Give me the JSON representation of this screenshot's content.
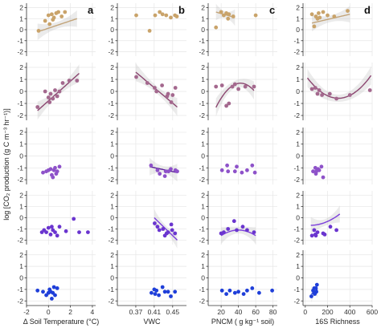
{
  "colors": {
    "row_points": [
      "#c9a36a",
      "#a4688e",
      "#8e52c9",
      "#6a35cf",
      "#1f3fd9"
    ],
    "row_lines": [
      "#c2a47a",
      "#8b4670",
      "#5a1e9a",
      "#7b3ddb",
      "#1f3fd9"
    ]
  },
  "ylabel": "log [CO₂ production (g C m⁻³ hr⁻¹)]",
  "columns": [
    {
      "letter": "a",
      "xlabel": "Δ Soil Temperature (°C)",
      "xlim": [
        -2,
        4.3
      ],
      "xticks": [
        -2,
        0,
        2,
        4
      ],
      "tick_labels": [
        "-2",
        "0",
        "2",
        "4"
      ]
    },
    {
      "letter": "b",
      "xlabel": "VWC",
      "xlim": [
        0.33,
        0.48
      ],
      "xticks": [
        0.37,
        0.41,
        0.45
      ],
      "tick_labels": [
        "0.37",
        "0.41",
        "0.45"
      ]
    },
    {
      "letter": "c",
      "xlabel": "PNCM ( g kg⁻¹ soil)",
      "xlim": [
        5,
        85
      ],
      "xticks": [
        20,
        40,
        60,
        80
      ],
      "tick_labels": [
        "20",
        "40",
        "60",
        "80"
      ]
    },
    {
      "letter": "d",
      "xlabel": "16S Richness",
      "xlim": [
        -20,
        600
      ],
      "xticks": [
        0,
        200,
        400,
        600
      ],
      "tick_labels": [
        "0",
        "200",
        "400",
        "600"
      ]
    }
  ],
  "row_yticks": [
    -2,
    -1,
    0,
    1,
    2
  ],
  "row_tick_labels": [
    "-2",
    "-1",
    "0",
    "1",
    "2"
  ],
  "chart_data": {
    "type": "scatter",
    "layout": "grid 5 rows x 4 columns",
    "ylim": [
      -2.4,
      2.4
    ],
    "grid": true,
    "panels": [
      {
        "row": 0,
        "col": 0,
        "points": [
          [
            -0.9,
            -0.1
          ],
          [
            -0.3,
            0.8
          ],
          [
            0.0,
            1.3
          ],
          [
            0.1,
            0.5
          ],
          [
            0.3,
            1.4
          ],
          [
            0.5,
            1.1
          ],
          [
            0.7,
            1.5
          ],
          [
            0.9,
            1.6
          ],
          [
            1.2,
            1.2
          ],
          [
            1.5,
            1.6
          ],
          [
            0.4,
            0.9
          ]
        ],
        "fit": {
          "kind": "linear",
          "x": [
            -1.0,
            2.6
          ],
          "y": [
            -0.2,
            1.0
          ]
        }
      },
      {
        "row": 0,
        "col": 1,
        "points": [
          [
            0.371,
            1.3
          ],
          [
            0.4,
            -0.1
          ],
          [
            0.412,
            1.3
          ],
          [
            0.422,
            1.6
          ],
          [
            0.428,
            1.4
          ],
          [
            0.436,
            1.3
          ],
          [
            0.446,
            1.1
          ],
          [
            0.455,
            1.3
          ],
          [
            0.459,
            1.2
          ]
        ]
      },
      {
        "row": 0,
        "col": 2,
        "points": [
          [
            14,
            0.2
          ],
          [
            20,
            1.6
          ],
          [
            23,
            1.3
          ],
          [
            26,
            1.5
          ],
          [
            28,
            1.0
          ],
          [
            29,
            1.4
          ],
          [
            34,
            1.2
          ],
          [
            60,
            1.3
          ]
        ],
        "fit": {
          "kind": "linear",
          "x": [
            14,
            36
          ],
          "y": [
            1.6,
            1.1
          ]
        }
      },
      {
        "row": 0,
        "col": 3,
        "points": [
          [
            60,
            1.4
          ],
          [
            80,
            0.3
          ],
          [
            95,
            1.2
          ],
          [
            110,
            1.0
          ],
          [
            130,
            1.1
          ],
          [
            160,
            1.6
          ],
          [
            200,
            1.3
          ],
          [
            260,
            1.2
          ],
          [
            380,
            1.7
          ],
          [
            120,
            1.5
          ]
        ],
        "fit": {
          "kind": "linear",
          "x": [
            60,
            400
          ],
          "y": [
            0.6,
            1.4
          ]
        }
      },
      {
        "row": 1,
        "col": 0,
        "points": [
          [
            -1.0,
            -1.3
          ],
          [
            -0.3,
            0.0
          ],
          [
            0.0,
            -0.5
          ],
          [
            0.1,
            -0.9
          ],
          [
            0.2,
            -0.2
          ],
          [
            0.6,
            0.1
          ],
          [
            0.8,
            -0.4
          ],
          [
            1.0,
            0.0
          ],
          [
            1.3,
            0.7
          ],
          [
            1.9,
            0.9
          ],
          [
            2.6,
            0.9
          ],
          [
            0.4,
            -0.6
          ]
        ],
        "fit": {
          "kind": "linear",
          "x": [
            -1.0,
            2.8
          ],
          "y": [
            -1.6,
            1.5
          ]
        }
      },
      {
        "row": 1,
        "col": 1,
        "points": [
          [
            0.371,
            1.2
          ],
          [
            0.395,
            0.7
          ],
          [
            0.411,
            0.3
          ],
          [
            0.415,
            0.0
          ],
          [
            0.427,
            0.5
          ],
          [
            0.44,
            -0.2
          ],
          [
            0.447,
            -0.9
          ],
          [
            0.45,
            -0.3
          ],
          [
            0.456,
            0.3
          ],
          [
            0.438,
            -0.4
          ]
        ],
        "fit": {
          "kind": "linear",
          "x": [
            0.37,
            0.46
          ],
          "y": [
            1.6,
            -1.3
          ]
        }
      },
      {
        "row": 1,
        "col": 2,
        "points": [
          [
            14,
            0.4
          ],
          [
            21,
            0.5
          ],
          [
            26,
            -1.2
          ],
          [
            29,
            -1.0
          ],
          [
            33,
            0.4
          ],
          [
            36,
            0.6
          ],
          [
            40,
            0.2
          ],
          [
            48,
            0.4
          ],
          [
            58,
            0.4
          ]
        ],
        "fit": {
          "kind": "quadratic",
          "x": [
            14,
            58
          ],
          "coef": [
            -3.8,
            0.2118,
            -0.0025
          ]
        }
      },
      {
        "row": 1,
        "col": 3,
        "points": [
          [
            60,
            0.2
          ],
          [
            90,
            0.3
          ],
          [
            110,
            -0.2
          ],
          [
            125,
            0.1
          ],
          [
            150,
            -0.3
          ],
          [
            220,
            -0.2
          ],
          [
            280,
            -0.6
          ],
          [
            400,
            -0.3
          ],
          [
            580,
            0.1
          ]
        ],
        "fit": {
          "kind": "quadratic",
          "x": [
            20,
            590
          ],
          "coef": [
            1.37,
            -0.01306,
            2.2e-05
          ]
        }
      },
      {
        "row": 2,
        "col": 0,
        "points": [
          [
            -0.5,
            -1.4
          ],
          [
            -0.2,
            -1.3
          ],
          [
            0.0,
            -1.2
          ],
          [
            0.2,
            -1.1
          ],
          [
            0.3,
            -1.6
          ],
          [
            0.5,
            -1.2
          ],
          [
            0.6,
            -1.0
          ],
          [
            0.8,
            -1.3
          ],
          [
            1.0,
            -0.9
          ],
          [
            0.7,
            -1.5
          ],
          [
            0.4,
            -1.8
          ]
        ]
      },
      {
        "row": 2,
        "col": 1,
        "points": [
          [
            0.403,
            -0.8
          ],
          [
            0.417,
            -1.2
          ],
          [
            0.422,
            -1.5
          ],
          [
            0.435,
            -1.3
          ],
          [
            0.441,
            -1.3
          ],
          [
            0.446,
            -1.1
          ],
          [
            0.456,
            -1.2
          ],
          [
            0.46,
            -1.3
          ],
          [
            0.433,
            -1.7
          ]
        ],
        "fit": {
          "kind": "linear",
          "x": [
            0.4,
            0.46
          ],
          "y": [
            -0.9,
            -1.4
          ]
        }
      },
      {
        "row": 2,
        "col": 2,
        "points": [
          [
            21,
            -1.2
          ],
          [
            27,
            -0.8
          ],
          [
            28,
            -1.3
          ],
          [
            36,
            -1.3
          ],
          [
            38,
            -0.9
          ],
          [
            44,
            -1.4
          ],
          [
            50,
            -1.2
          ],
          [
            56,
            -0.8
          ],
          [
            59,
            -1.4
          ]
        ]
      },
      {
        "row": 2,
        "col": 3,
        "points": [
          [
            70,
            -1.3
          ],
          [
            90,
            -1.0
          ],
          [
            100,
            -1.3
          ],
          [
            115,
            -1.1
          ],
          [
            125,
            -1.2
          ],
          [
            145,
            -0.9
          ],
          [
            160,
            -1.8
          ],
          [
            95,
            -1.5
          ]
        ]
      },
      {
        "row": 3,
        "col": 0,
        "points": [
          [
            -0.6,
            -1.3
          ],
          [
            -0.4,
            -1.1
          ],
          [
            -0.2,
            -1.3
          ],
          [
            0.0,
            -0.9
          ],
          [
            0.3,
            -0.8
          ],
          [
            0.4,
            -1.1
          ],
          [
            0.6,
            -1.3
          ],
          [
            0.8,
            -1.6
          ],
          [
            1.0,
            -0.8
          ],
          [
            1.6,
            -1.2
          ],
          [
            2.3,
            -0.1
          ],
          [
            2.8,
            -1.3
          ],
          [
            3.6,
            -1.3
          ],
          [
            0.2,
            -1.5
          ]
        ]
      },
      {
        "row": 3,
        "col": 1,
        "points": [
          [
            0.411,
            -0.5
          ],
          [
            0.417,
            -0.8
          ],
          [
            0.421,
            -1.1
          ],
          [
            0.429,
            -1.0
          ],
          [
            0.433,
            -1.6
          ],
          [
            0.44,
            -1.3
          ],
          [
            0.447,
            -0.6
          ],
          [
            0.449,
            -1.1
          ],
          [
            0.455,
            -1.4
          ],
          [
            0.437,
            -1.4
          ]
        ],
        "fit": {
          "kind": "linear",
          "x": [
            0.41,
            0.46
          ],
          "y": [
            0.0,
            -2.0
          ]
        }
      },
      {
        "row": 3,
        "col": 2,
        "points": [
          [
            20,
            -1.4
          ],
          [
            23,
            -1.3
          ],
          [
            28,
            -1.0
          ],
          [
            35,
            -0.3
          ],
          [
            38,
            -1.1
          ],
          [
            45,
            -0.8
          ],
          [
            50,
            -1.1
          ],
          [
            58,
            -1.3
          ]
        ],
        "fit": {
          "kind": "quadratic",
          "x": [
            20,
            60
          ],
          "coef": [
            -3.1,
            0.1,
            -0.00125
          ]
        }
      },
      {
        "row": 3,
        "col": 3,
        "points": [
          [
            60,
            -1.6
          ],
          [
            80,
            -1.1
          ],
          [
            90,
            -1.5
          ],
          [
            95,
            -1.6
          ],
          [
            110,
            -1.3
          ],
          [
            160,
            -1.4
          ],
          [
            175,
            -1.5
          ],
          [
            280,
            -1.1
          ],
          [
            225,
            -0.8
          ]
        ],
        "fit": {
          "kind": "quadratic",
          "x": [
            50,
            310
          ],
          "coef": [
            -0.651,
            -0.00126,
            1.43e-05
          ]
        }
      },
      {
        "row": 4,
        "col": 0,
        "points": [
          [
            -1.0,
            -1.1
          ],
          [
            -0.5,
            -1.2
          ],
          [
            -0.2,
            -1.5
          ],
          [
            0.0,
            -1.3
          ],
          [
            0.1,
            -1.0
          ],
          [
            0.2,
            -1.2
          ],
          [
            0.4,
            -1.3
          ],
          [
            0.5,
            -0.8
          ],
          [
            0.6,
            -1.5
          ],
          [
            0.8,
            -0.9
          ],
          [
            0.3,
            -1.8
          ]
        ]
      },
      {
        "row": 4,
        "col": 1,
        "points": [
          [
            0.404,
            -1.3
          ],
          [
            0.41,
            -1.0
          ],
          [
            0.415,
            -1.1
          ],
          [
            0.42,
            -1.5
          ],
          [
            0.428,
            -0.8
          ],
          [
            0.433,
            -1.2
          ],
          [
            0.44,
            -1.2
          ],
          [
            0.446,
            -1.6
          ],
          [
            0.455,
            -1.2
          ],
          [
            0.412,
            -1.4
          ]
        ]
      },
      {
        "row": 4,
        "col": 2,
        "points": [
          [
            21,
            -1.1
          ],
          [
            26,
            -1.4
          ],
          [
            30,
            -1.1
          ],
          [
            36,
            -1.3
          ],
          [
            40,
            -1.2
          ],
          [
            46,
            -1.4
          ],
          [
            50,
            -1.1
          ],
          [
            56,
            -0.9
          ],
          [
            64,
            -1.3
          ],
          [
            79,
            -1.1
          ]
        ]
      },
      {
        "row": 4,
        "col": 3,
        "points": [
          [
            55,
            -1.6
          ],
          [
            70,
            -1.1
          ],
          [
            80,
            -0.9
          ],
          [
            85,
            -1.4
          ],
          [
            95,
            -0.9
          ],
          [
            100,
            -1.2
          ],
          [
            105,
            -0.6
          ],
          [
            80,
            -1.3
          ]
        ],
        "fit": {
          "kind": "linear",
          "x": [
            55,
            110
          ],
          "y": [
            -1.4,
            -1.0
          ]
        }
      }
    ]
  }
}
